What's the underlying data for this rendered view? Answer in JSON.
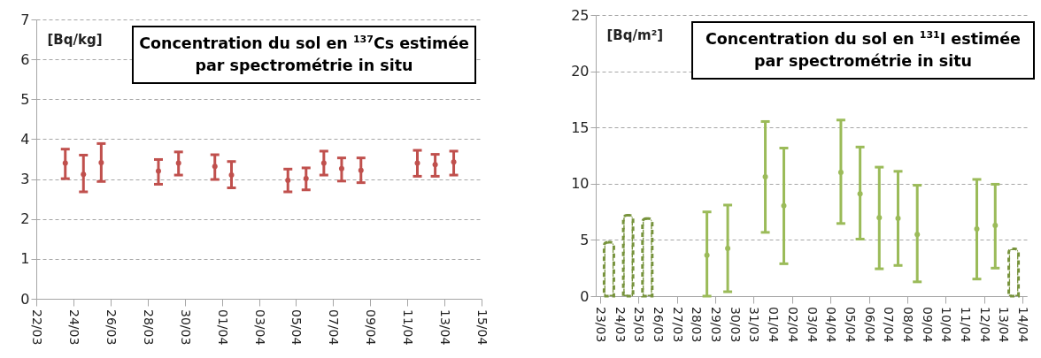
{
  "chart_data": [
    {
      "type": "scatter",
      "title": "Concentration du sol en $^{137}$Cs estimée par spectrométrie in situ",
      "ylabel": "[Bq/kg]",
      "xlim": [
        "--03-22",
        "--04-15"
      ],
      "xticks": [
        {
          "value": "--03-22",
          "label": "22/03"
        },
        {
          "value": "--03-24",
          "label": "24/03"
        },
        {
          "value": "--03-26",
          "label": "26/03"
        },
        {
          "value": "--03-28",
          "label": "28/03"
        },
        {
          "value": "--03-30",
          "label": "30/03"
        },
        {
          "value": "--04-01",
          "label": "01/04"
        },
        {
          "value": "--04-03",
          "label": "03/04"
        },
        {
          "value": "--04-05",
          "label": "05/04"
        },
        {
          "value": "--04-07",
          "label": "07/04"
        },
        {
          "value": "--04-09",
          "label": "09/04"
        },
        {
          "value": "--04-11",
          "label": "11/04"
        },
        {
          "value": "--04-13",
          "label": "13/04"
        },
        {
          "value": "--04-15",
          "label": "15/04"
        }
      ],
      "ylim": [
        0,
        7
      ],
      "yticks": [
        0,
        1,
        2,
        3,
        4,
        5,
        6,
        7
      ],
      "grid": "y",
      "legend": false,
      "marker": "circle",
      "series": [
        {
          "color": "#c0504d",
          "x": [
            "--03-23T13:30",
            "--03-24T13:00",
            "--03-25T12:00",
            "--03-28T14:00",
            "--03-29T16:00",
            "--03-31T15:00",
            "--04-01T12:30",
            "--04-04T13:30",
            "--04-05T13:00",
            "--04-06T12:00",
            "--04-07T11:00",
            "--04-08T12:00",
            "--04-11T13:00",
            "--04-12T12:00",
            "--04-13T12:00"
          ],
          "values": [
            3.4,
            3.12,
            3.41,
            3.2,
            3.4,
            3.32,
            3.1,
            2.97,
            3.01,
            3.4,
            3.26,
            3.22,
            3.4,
            3.36,
            3.43
          ],
          "errors": [
            [
              3.01,
              3.75
            ],
            [
              2.68,
              3.6
            ],
            [
              2.94,
              3.89
            ],
            [
              2.87,
              3.49
            ],
            [
              3.1,
              3.68
            ],
            [
              2.99,
              3.61
            ],
            [
              2.78,
              3.44
            ],
            [
              2.68,
              3.25
            ],
            [
              2.73,
              3.28
            ],
            [
              3.1,
              3.7
            ],
            [
              2.95,
              3.53
            ],
            [
              2.91,
              3.53
            ],
            [
              3.07,
              3.72
            ],
            [
              3.07,
              3.62
            ],
            [
              3.1,
              3.7
            ]
          ]
        }
      ]
    },
    {
      "type": "scatter",
      "title": "Concentration du sol en $^{131}$I estimée par spectrométrie in situ",
      "ylabel": "[Bq/m²]",
      "xlim": [
        "--03-23",
        "--04-14"
      ],
      "xticks": [
        {
          "value": "--03-23",
          "label": "23/03"
        },
        {
          "value": "--03-24",
          "label": "24/03"
        },
        {
          "value": "--03-25",
          "label": "25/03"
        },
        {
          "value": "--03-26",
          "label": "26/03"
        },
        {
          "value": "--03-27",
          "label": "27/03"
        },
        {
          "value": "--03-28",
          "label": "28/03"
        },
        {
          "value": "--03-29",
          "label": "29/03"
        },
        {
          "value": "--03-30",
          "label": "30/03"
        },
        {
          "value": "--03-31",
          "label": "31/03"
        },
        {
          "value": "--04-01",
          "label": "01/04"
        },
        {
          "value": "--04-02",
          "label": "02/04"
        },
        {
          "value": "--04-03",
          "label": "03/04"
        },
        {
          "value": "--04-04",
          "label": "04/04"
        },
        {
          "value": "--04-05",
          "label": "05/04"
        },
        {
          "value": "--04-06",
          "label": "06/04"
        },
        {
          "value": "--04-07",
          "label": "07/04"
        },
        {
          "value": "--04-08",
          "label": "08/04"
        },
        {
          "value": "--04-09",
          "label": "09/04"
        },
        {
          "value": "--04-10",
          "label": "10/04"
        },
        {
          "value": "--04-11",
          "label": "11/04"
        },
        {
          "value": "--04-12",
          "label": "12/04"
        },
        {
          "value": "--04-13",
          "label": "13/04"
        },
        {
          "value": "--04-14",
          "label": "14/04"
        }
      ],
      "ylim": [
        0,
        25
      ],
      "yticks": [
        0,
        5,
        10,
        15,
        20,
        25
      ],
      "grid": "y",
      "legend": false,
      "marker": "circle",
      "series": [
        {
          "type": "bar",
          "color": "#77933c",
          "line_style": "dashed",
          "x": [
            "--03-23T11:00",
            "--03-24T11:00",
            "--03-25T11:00",
            "--04-13T13:00"
          ],
          "values": [
            4.8,
            7.2,
            6.9,
            4.2
          ]
        },
        {
          "color": "#9bbb59",
          "x": [
            "--03-28T13:30",
            "--03-29T15:30",
            "--03-31T14:30",
            "--04-01T13:40",
            "--04-04T13:00",
            "--04-05T13:00",
            "--04-06T13:00",
            "--04-07T12:30",
            "--04-08T12:30",
            "--04-11T15:00",
            "--04-12T14:00"
          ],
          "values": [
            3.64,
            4.25,
            10.62,
            8.04,
            11.01,
            9.1,
            6.98,
            6.92,
            5.49,
            5.98,
            6.28
          ],
          "errors": [
            [
              0,
              7.49
            ],
            [
              0.39,
              8.1
            ],
            [
              5.67,
              15.53
            ],
            [
              2.88,
              13.17
            ],
            [
              6.46,
              15.66
            ],
            [
              5.07,
              13.26
            ],
            [
              2.43,
              11.47
            ],
            [
              2.73,
              11.1
            ],
            [
              1.27,
              9.86
            ],
            [
              1.52,
              10.38
            ],
            [
              2.49,
              9.95
            ]
          ]
        }
      ]
    }
  ]
}
